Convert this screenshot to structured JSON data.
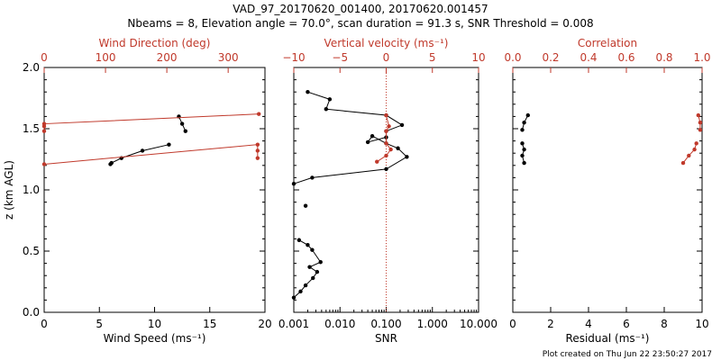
{
  "title_line1": "VAD_97_20170620_001400, 20170620.001457",
  "title_line2": "Nbeams = 8, Elevation angle = 70.0°, scan duration = 91.3 s, SNR Threshold = 0.008",
  "footer": "Plot created on Thu Jun 22 23:50:27 2017",
  "colors": {
    "primary": "#000000",
    "secondary": "#c0392b"
  },
  "chart_data": [
    {
      "type": "line",
      "ylabel": "z (km AGL)",
      "ylim": [
        0.0,
        2.0
      ],
      "yticks": [
        "0.0",
        "0.5",
        "1.0",
        "1.5",
        "2.0"
      ],
      "bottom_axis": {
        "label": "Wind Speed (ms⁻¹)",
        "range": [
          0,
          20
        ],
        "ticks": [
          "0",
          "5",
          "10",
          "15",
          "20"
        ]
      },
      "top_axis": {
        "label": "Wind Direction (deg)",
        "range": [
          0,
          360
        ],
        "ticks": [
          "0",
          "100",
          "200",
          "300"
        ],
        "color": "#c0392b"
      },
      "series": [
        {
          "axis": "bottom",
          "color": "#000000",
          "x": [
            11.3,
            8.9,
            7.0,
            6.1,
            6.0
          ],
          "y": [
            1.37,
            1.32,
            1.26,
            1.22,
            1.21
          ]
        },
        {
          "axis": "bottom",
          "color": "#000000",
          "x": [
            12.2,
            12.5,
            12.8
          ],
          "y": [
            1.6,
            1.54,
            1.48
          ]
        },
        {
          "axis": "top",
          "color": "#c0392b",
          "x": [
            0,
            348,
            348,
            348
          ],
          "y": [
            1.21,
            1.37,
            1.32,
            1.26
          ]
        },
        {
          "axis": "top",
          "color": "#c0392b",
          "x": [
            0,
            0,
            0,
            350
          ],
          "y": [
            1.48,
            1.52,
            1.54,
            1.62
          ]
        }
      ]
    },
    {
      "type": "line",
      "ylim": [
        0.0,
        2.0
      ],
      "xscale": "log",
      "bottom_axis": {
        "label": "SNR",
        "range": [
          0.001,
          10.0
        ],
        "ticks": [
          "0.001",
          "0.010",
          "0.100",
          "1.000",
          "10.000"
        ]
      },
      "top_axis": {
        "label": "Vertical velocity (ms⁻¹)",
        "range": [
          -10,
          10
        ],
        "ticks": [
          "−10",
          "−5",
          "0",
          "5",
          "10"
        ],
        "color": "#c0392b"
      },
      "zero_line": 0,
      "series": [
        {
          "axis": "bottom",
          "color": "#000000",
          "x": [
            0.002,
            0.006,
            0.005,
            0.1,
            0.22,
            0.1,
            0.1,
            0.04,
            0.05,
            0.1,
            0.18,
            0.28,
            0.1,
            0.0025,
            0.001
          ],
          "y": [
            1.8,
            1.74,
            1.66,
            1.61,
            1.53,
            1.48,
            1.43,
            1.39,
            1.44,
            1.38,
            1.34,
            1.27,
            1.17,
            1.1,
            1.05
          ]
        },
        {
          "axis": "bottom",
          "color": "#000000",
          "x": [
            0.0018
          ],
          "y": [
            0.87
          ]
        },
        {
          "axis": "bottom",
          "color": "#000000",
          "x": [
            0.0013,
            0.002,
            0.0025,
            0.0038,
            0.0022,
            0.0032,
            0.0026,
            0.0018,
            0.0014,
            0.001
          ],
          "y": [
            0.59,
            0.55,
            0.51,
            0.41,
            0.37,
            0.33,
            0.28,
            0.22,
            0.17,
            0.12
          ]
        },
        {
          "axis": "top",
          "color": "#c0392b",
          "x": [
            0.0,
            0.3,
            0.0,
            0.0,
            0.5,
            0.0,
            -1.0
          ],
          "y": [
            1.61,
            1.52,
            1.48,
            1.38,
            1.33,
            1.28,
            1.23
          ]
        }
      ]
    },
    {
      "type": "line",
      "ylim": [
        0.0,
        2.0
      ],
      "bottom_axis": {
        "label": "Residual (ms⁻¹)",
        "range": [
          0,
          10
        ],
        "ticks": [
          "0",
          "2",
          "4",
          "6",
          "8",
          "10"
        ]
      },
      "top_axis": {
        "label": "Correlation",
        "range": [
          0.0,
          1.0
        ],
        "ticks": [
          "0.0",
          "0.2",
          "0.4",
          "0.6",
          "0.8",
          "1.0"
        ],
        "color": "#c0392b"
      },
      "series": [
        {
          "axis": "bottom",
          "color": "#000000",
          "x": [
            0.8,
            0.6,
            0.5
          ],
          "y": [
            1.61,
            1.55,
            1.49
          ]
        },
        {
          "axis": "bottom",
          "color": "#000000",
          "x": [
            0.5,
            0.6,
            0.5,
            0.6
          ],
          "y": [
            1.38,
            1.33,
            1.28,
            1.22
          ]
        },
        {
          "axis": "top",
          "color": "#c0392b",
          "x": [
            0.98,
            0.99,
            0.99
          ],
          "y": [
            1.61,
            1.55,
            1.49
          ]
        },
        {
          "axis": "top",
          "color": "#c0392b",
          "x": [
            0.97,
            0.96,
            0.93,
            0.9
          ],
          "y": [
            1.38,
            1.33,
            1.28,
            1.22
          ]
        }
      ]
    }
  ]
}
